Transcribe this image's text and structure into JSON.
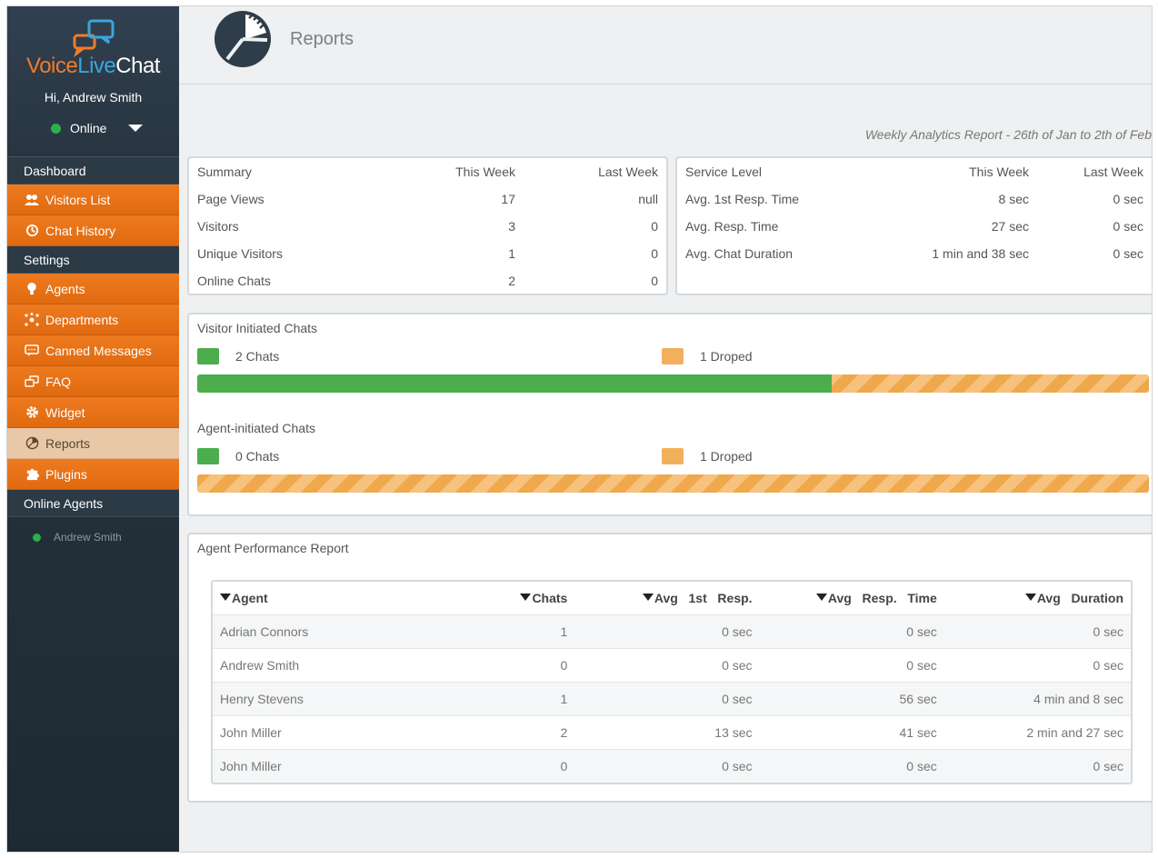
{
  "brand": {
    "part1": "Voice",
    "part2": "Live",
    "part3": "Chat"
  },
  "user": {
    "greeting": "Hi, Andrew Smith",
    "status": "Online"
  },
  "sidebar": {
    "dashboard": "Dashboard",
    "visitors_list": "Visitors List",
    "chat_history": "Chat History",
    "settings": "Settings",
    "agents": "Agents",
    "departments": "Departments",
    "canned_messages": "Canned Messages",
    "faq": "FAQ",
    "widget": "Widget",
    "reports": "Reports",
    "plugins": "Plugins",
    "online_agents": "Online Agents",
    "online_agent_name": "Andrew Smith"
  },
  "header": {
    "title": "Reports",
    "caption": "Weekly Analytics Report - 26th of Jan to 2th of Feb"
  },
  "summary": {
    "headers": [
      "Summary",
      "This Week",
      "Last Week"
    ],
    "rows": [
      [
        "Page Views",
        "17",
        "null"
      ],
      [
        "Visitors",
        "3",
        "0"
      ],
      [
        "Unique Visitors",
        "1",
        "0"
      ],
      [
        "Online Chats",
        "2",
        "0"
      ]
    ]
  },
  "service": {
    "headers": [
      "Service Level",
      "This Week",
      "Last Week"
    ],
    "rows": [
      [
        "Avg. 1st Resp. Time",
        "8 sec",
        "0 sec"
      ],
      [
        "Avg. Resp. Time",
        "27 sec",
        "0 sec"
      ],
      [
        "Avg. Chat Duration",
        "1 min and 38 sec",
        "0 sec"
      ]
    ]
  },
  "visitor_chats": {
    "title": "Visitor Initiated Chats",
    "chats": "2 Chats",
    "droped": "1 Droped",
    "chat_fraction": 0.667
  },
  "agent_chats": {
    "title": "Agent-initiated Chats",
    "chats": "0 Chats",
    "droped": "1 Droped",
    "chat_fraction": 0.0
  },
  "performance": {
    "title": "Agent Performance Report",
    "headers": [
      "Agent",
      "Chats",
      "Avg   1st   Resp.",
      "Avg   Resp.   Time",
      "Avg   Duration"
    ],
    "rows": [
      [
        "Adrian Connors",
        "1",
        "0 sec",
        "0 sec",
        "0 sec"
      ],
      [
        "Andrew Smith",
        "0",
        "0 sec",
        "0 sec",
        "0 sec"
      ],
      [
        "Henry Stevens",
        "1",
        "0 sec",
        "56 sec",
        "4 min and 8 sec"
      ],
      [
        "John Miller",
        "2",
        "13 sec",
        "41 sec",
        "2 min and 27 sec"
      ],
      [
        "John Miller",
        "0",
        "0 sec",
        "0 sec",
        "0 sec"
      ]
    ]
  },
  "colors": {
    "accent": "#ee7a1f",
    "green": "#4cad4c",
    "orange": "#f2b05c",
    "sidebar": "#1e2a33"
  }
}
